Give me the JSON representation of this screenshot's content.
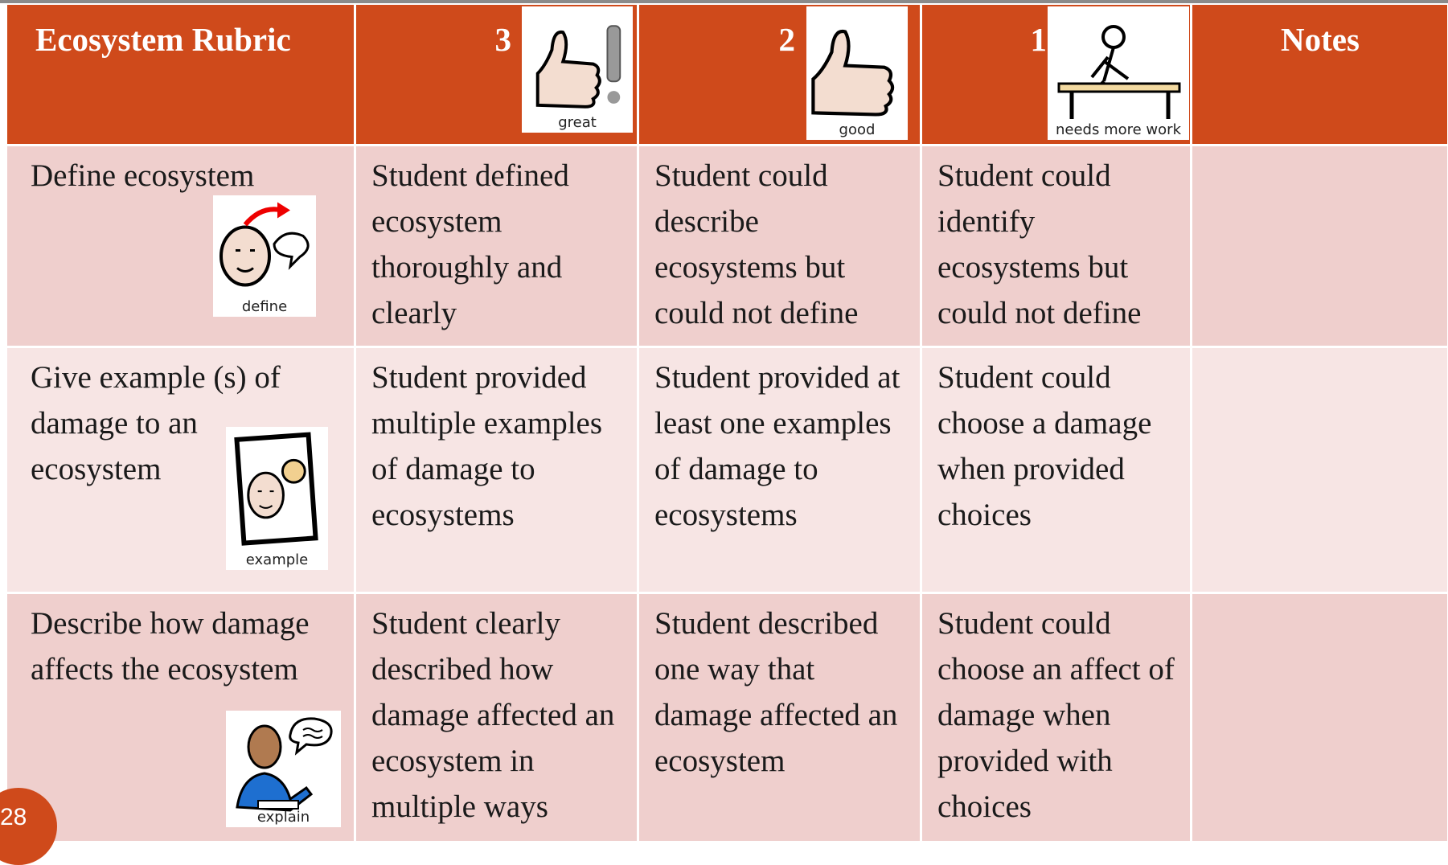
{
  "table": {
    "header": [
      {
        "label": "Ecosystem Rubric"
      },
      {
        "label": "3",
        "icon_label": "great"
      },
      {
        "label": "2",
        "icon_label": "good"
      },
      {
        "label": "1",
        "icon_label": "needs more work"
      },
      {
        "label": "Notes"
      }
    ],
    "rows": [
      {
        "criterion": "Define ecosystem",
        "icon_label": "define",
        "cells": [
          "Student defined ecosystem thoroughly and clearly",
          "Student could describe ecosystems but could not define",
          "Student could identify ecosystems but could not define"
        ]
      },
      {
        "criterion": "Give example (s) of damage to an ecosystem",
        "icon_label": "example",
        "cells": [
          "Student provided multiple examples of damage to ecosystems",
          "Student provided at least one examples of damage to ecosystems",
          "Student could choose a damage when provided choices"
        ]
      },
      {
        "criterion": "Describe how damage affects the ecosystem",
        "icon_label": "explain",
        "cells": [
          "Student clearly described how damage affected an ecosystem in multiple ways",
          "Student described one way that damage affected an ecosystem",
          "Student could choose an affect of damage when provided with choices"
        ]
      }
    ]
  },
  "page_number": "28"
}
